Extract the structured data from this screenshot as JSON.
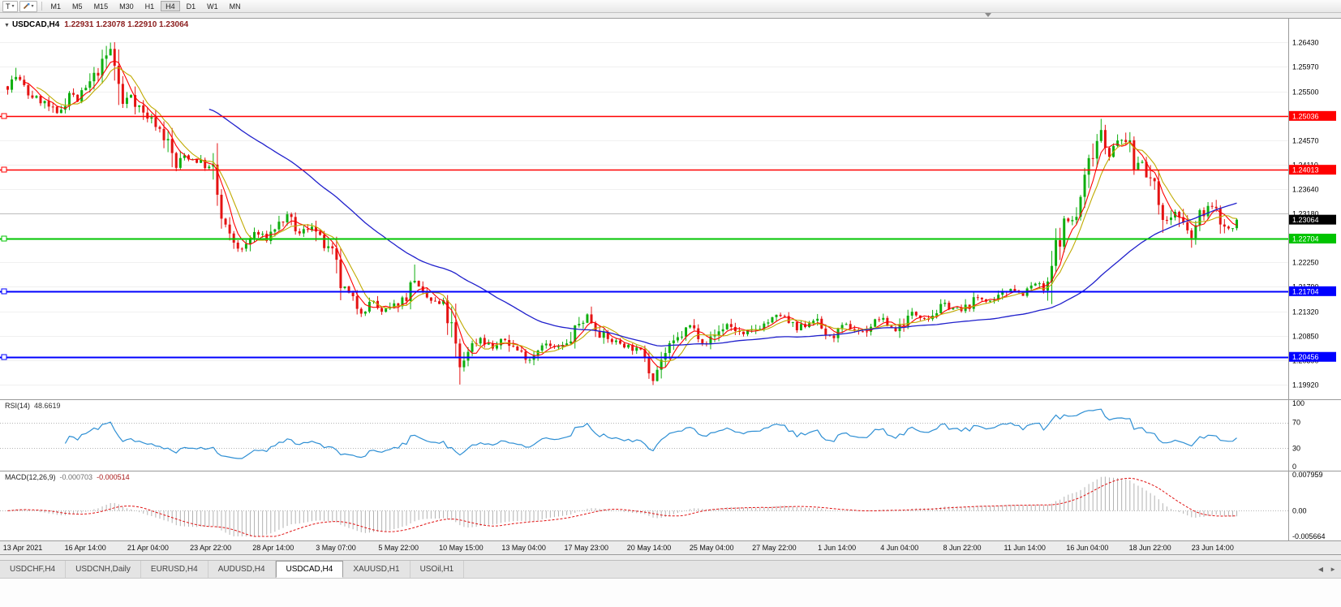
{
  "icons": {
    "collapse": "▼",
    "caret_down": "▾",
    "tab_scroll_left": "◀",
    "tab_scroll_right": "►"
  },
  "toolbar": {
    "t_button_label": "T",
    "timeframes": [
      "M1",
      "M5",
      "M15",
      "M30",
      "H1",
      "H4",
      "D1",
      "W1",
      "MN"
    ],
    "active_timeframe": "H4"
  },
  "chart": {
    "header": {
      "symbol": "USDCAD,H4",
      "ohlc": "1.22931 1.23078 1.22910 1.23064"
    },
    "colors": {
      "up": "#0fae0f",
      "down": "#e41212",
      "ma_fast": "#ff0000",
      "ma_mid": "#c0aa00",
      "ma_slow": "#2020cc",
      "rsi": "#2e8fd4",
      "macd_hist": "#b2b2b2",
      "macd_signal": "#e01010",
      "grid": "#f0f0f0",
      "axis_border": "#9a9a9a"
    },
    "scale": {
      "top_price": 1.269,
      "bottom_price": 1.1965
    },
    "y_axis_labels": [
      "1.26430",
      "1.25970",
      "1.25500",
      "1.25040",
      "1.24570",
      "1.24110",
      "1.23640",
      "1.23180",
      "1.22710",
      "1.22250",
      "1.21790",
      "1.21320",
      "1.20850",
      "1.20390",
      "1.19920"
    ],
    "gray_line": {
      "value": 1.2318
    },
    "price_lines": [
      {
        "value": 1.25036,
        "label": "1.25036",
        "color": "#ff0000",
        "thickness": 1.4
      },
      {
        "value": 1.24013,
        "label": "1.24013",
        "color": "#ff0000",
        "thickness": 1.4
      },
      {
        "value": 1.22704,
        "label": "1.22704",
        "color": "#00c400",
        "thickness": 2
      },
      {
        "value": 1.21704,
        "label": "1.21704",
        "color": "#0000ff",
        "thickness": 2
      },
      {
        "value": 1.20456,
        "label": "1.20456",
        "color": "#0000ff",
        "thickness": 2
      }
    ],
    "current_price": {
      "value": 1.23064,
      "label": "1.23064"
    },
    "moving_averages": [
      {
        "period": 5,
        "color": "#ff0000",
        "width": 1.1
      },
      {
        "period": 8,
        "color": "#c0aa00",
        "width": 1.1
      },
      {
        "period": 50,
        "color": "#2020cc",
        "width": 1.3
      }
    ],
    "x_axis_labels": [
      "13 Apr 2021",
      "16 Apr 14:00",
      "21 Apr 04:00",
      "23 Apr 22:00",
      "28 Apr 14:00",
      "3 May 07:00",
      "5 May 22:00",
      "10 May 15:00",
      "13 May 04:00",
      "17 May 23:00",
      "20 May 14:00",
      "25 May 04:00",
      "27 May 22:00",
      "1 Jun 14:00",
      "4 Jun 04:00",
      "8 Jun 22:00",
      "11 Jun 14:00",
      "16 Jun 04:00",
      "18 Jun 22:00",
      "23 Jun 14:00"
    ],
    "candles": {
      "count": 300,
      "seed": 7,
      "final_close": 1.23064,
      "anchors": [
        [
          0,
          1.256
        ],
        [
          2,
          1.2578
        ],
        [
          5,
          1.2545
        ],
        [
          9,
          1.2528
        ],
        [
          12,
          1.2505
        ],
        [
          15,
          1.2548
        ],
        [
          17,
          1.2532
        ],
        [
          20,
          1.2565
        ],
        [
          23,
          1.2602
        ],
        [
          25,
          1.263
        ],
        [
          26,
          1.2598
        ],
        [
          28,
          1.2525
        ],
        [
          30,
          1.2545
        ],
        [
          33,
          1.2508
        ],
        [
          36,
          1.249
        ],
        [
          39,
          1.2452
        ],
        [
          41,
          1.2405
        ],
        [
          43,
          1.2428
        ],
        [
          47,
          1.2415
        ],
        [
          50,
          1.2398
        ],
        [
          52,
          1.2305
        ],
        [
          54,
          1.2272
        ],
        [
          57,
          1.2248
        ],
        [
          60,
          1.2282
        ],
        [
          63,
          1.227
        ],
        [
          65,
          1.2292
        ],
        [
          68,
          1.2312
        ],
        [
          71,
          1.2278
        ],
        [
          74,
          1.2298
        ],
        [
          76,
          1.2266
        ],
        [
          79,
          1.2238
        ],
        [
          81,
          1.2182
        ],
        [
          84,
          1.2152
        ],
        [
          86,
          1.2132
        ],
        [
          89,
          1.2152
        ],
        [
          91,
          1.2128
        ],
        [
          94,
          1.2142
        ],
        [
          97,
          1.2162
        ],
        [
          99,
          1.2195
        ],
        [
          100,
          1.2168
        ],
        [
          103,
          1.2152
        ],
        [
          106,
          1.2142
        ],
        [
          108,
          1.2095
        ],
        [
          110,
          1.2022
        ],
        [
          112,
          1.2062
        ],
        [
          115,
          1.2082
        ],
        [
          118,
          1.2062
        ],
        [
          121,
          1.2078
        ],
        [
          124,
          1.2058
        ],
        [
          127,
          1.2042
        ],
        [
          130,
          1.2072
        ],
        [
          133,
          1.2062
        ],
        [
          136,
          1.2068
        ],
        [
          139,
          1.2108
        ],
        [
          141,
          1.2125
        ],
        [
          144,
          1.2092
        ],
        [
          146,
          1.2078
        ],
        [
          149,
          1.2072
        ],
        [
          152,
          1.2062
        ],
        [
          155,
          1.2052
        ],
        [
          157,
          1.2005
        ],
        [
          159,
          1.2042
        ],
        [
          161,
          1.2062
        ],
        [
          166,
          1.2105
        ],
        [
          170,
          1.2072
        ],
        [
          175,
          1.2108
        ],
        [
          179,
          1.2086
        ],
        [
          184,
          1.2108
        ],
        [
          188,
          1.2125
        ],
        [
          192,
          1.2096
        ],
        [
          196,
          1.2118
        ],
        [
          200,
          1.2082
        ],
        [
          204,
          1.2105
        ],
        [
          208,
          1.2092
        ],
        [
          212,
          1.2118
        ],
        [
          216,
          1.2096
        ],
        [
          220,
          1.2128
        ],
        [
          224,
          1.212
        ],
        [
          228,
          1.2145
        ],
        [
          232,
          1.2132
        ],
        [
          236,
          1.2158
        ],
        [
          240,
          1.215
        ],
        [
          244,
          1.2178
        ],
        [
          247,
          1.2165
        ],
        [
          250,
          1.2185
        ],
        [
          252,
          1.2172
        ],
        [
          253,
          1.2175
        ],
        [
          255,
          1.2252
        ],
        [
          257,
          1.23
        ],
        [
          260,
          1.231
        ],
        [
          262,
          1.2382
        ],
        [
          264,
          1.2442
        ],
        [
          266,
          1.2478
        ],
        [
          268,
          1.2432
        ],
        [
          270,
          1.2452
        ],
        [
          272,
          1.2462
        ],
        [
          274,
          1.2405
        ],
        [
          276,
          1.2422
        ],
        [
          278,
          1.2382
        ],
        [
          280,
          1.2342
        ],
        [
          282,
          1.2302
        ],
        [
          284,
          1.2322
        ],
        [
          286,
          1.2292
        ],
        [
          288,
          1.2272
        ],
        [
          290,
          1.2312
        ],
        [
          292,
          1.2332
        ],
        [
          294,
          1.2322
        ],
        [
          296,
          1.2292
        ],
        [
          298,
          1.2288
        ],
        [
          299,
          1.23064
        ]
      ],
      "spikes": [
        {
          "i": 2,
          "h": 1.2595
        },
        {
          "i": 25,
          "h": 1.2643
        },
        {
          "i": 99,
          "h": 1.2221
        },
        {
          "i": 110,
          "l": 1.1993
        },
        {
          "i": 157,
          "l": 1.1992
        },
        {
          "i": 266,
          "h": 1.2498
        },
        {
          "i": 288,
          "l": 1.2253
        }
      ]
    }
  },
  "rsi": {
    "title": "RSI(14)",
    "value": "48.6619",
    "period": 14,
    "levels": [
      "100",
      "70",
      "30",
      "0"
    ]
  },
  "macd": {
    "title": "MACD(12,26,9)",
    "value_main": "-0.000703",
    "value_signal": "-0.000514",
    "max": 0.007959,
    "min": -0.005664,
    "axis": [
      "0.007959",
      "0.00",
      "-0.005664"
    ]
  },
  "tabs": {
    "items": [
      {
        "label": "USDCHF,H4"
      },
      {
        "label": "USDCNH,Daily"
      },
      {
        "label": "EURUSD,H4"
      },
      {
        "label": "AUDUSD,H4"
      },
      {
        "label": "USDCAD,H4"
      },
      {
        "label": "XAUUSD,H1"
      },
      {
        "label": "USOil,H1"
      }
    ],
    "active": "USDCAD,H4"
  }
}
